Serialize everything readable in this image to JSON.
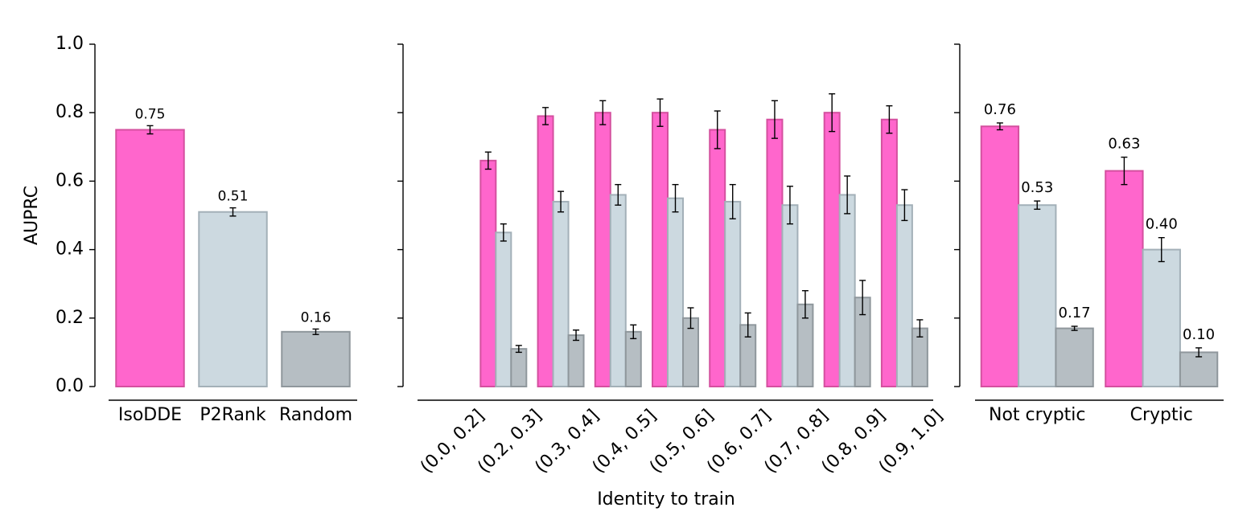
{
  "chart_data": [
    {
      "type": "bar",
      "ylabel": "AUPRC",
      "categories": [
        "IsoDDE",
        "P2Rank",
        "Random"
      ],
      "values": [
        0.75,
        0.51,
        0.16
      ],
      "errors": [
        0.012,
        0.012,
        0.008
      ],
      "value_labels": [
        "0.75",
        "0.51",
        "0.16"
      ],
      "colors": [
        "#ff66cc",
        "#ccd9e0",
        "#b6bec3"
      ],
      "ylim": [
        0,
        1.0
      ],
      "yticks": [
        {
          "value": 0,
          "label": "0.0"
        },
        {
          "value": 0.2,
          "label": "0.2"
        },
        {
          "value": 0.4,
          "label": "0.4"
        },
        {
          "value": 0.6,
          "label": "0.6"
        },
        {
          "value": 0.8,
          "label": "0.8"
        },
        {
          "value": 1.0,
          "label": "1.0"
        }
      ]
    },
    {
      "type": "grouped_bar",
      "xlabel": "Identity to train",
      "categories": [
        "(0.0, 0.2]",
        "(0.2, 0.3]",
        "(0.3, 0.4]",
        "(0.4, 0.5]",
        "(0.5, 0.6]",
        "(0.6, 0.7]",
        "(0.7, 0.8]",
        "(0.8, 0.9]",
        "(0.9, 1.0]"
      ],
      "series": [
        {
          "color": "#ff66cc",
          "values": [
            null,
            0.66,
            0.79,
            0.8,
            0.8,
            0.75,
            0.78,
            0.8,
            0.78
          ],
          "errors": [
            null,
            0.025,
            0.025,
            0.035,
            0.04,
            0.055,
            0.055,
            0.055,
            0.04
          ]
        },
        {
          "color": "#ccd9e0",
          "values": [
            null,
            0.45,
            0.54,
            0.56,
            0.55,
            0.54,
            0.53,
            0.56,
            0.53
          ],
          "errors": [
            null,
            0.025,
            0.03,
            0.03,
            0.04,
            0.05,
            0.055,
            0.055,
            0.045
          ]
        },
        {
          "color": "#b6bec3",
          "values": [
            null,
            0.11,
            0.15,
            0.16,
            0.2,
            0.18,
            0.24,
            0.26,
            0.17
          ],
          "errors": [
            null,
            0.01,
            0.015,
            0.02,
            0.03,
            0.035,
            0.04,
            0.05,
            0.025
          ]
        }
      ],
      "ylim": [
        0,
        1.0
      ],
      "yticks": [
        0,
        0.2,
        0.4,
        0.6,
        0.8,
        1.0
      ]
    },
    {
      "type": "grouped_bar",
      "categories": [
        "Not cryptic",
        "Cryptic"
      ],
      "series": [
        {
          "color": "#ff66cc",
          "values": [
            0.76,
            0.63
          ],
          "errors": [
            0.01,
            0.04
          ],
          "value_labels": [
            "0.76",
            "0.63"
          ]
        },
        {
          "color": "#ccd9e0",
          "values": [
            0.53,
            0.4
          ],
          "errors": [
            0.012,
            0.035
          ],
          "value_labels": [
            "0.53",
            "0.40"
          ]
        },
        {
          "color": "#b6bec3",
          "values": [
            0.17,
            0.1
          ],
          "errors": [
            0.006,
            0.013
          ],
          "value_labels": [
            "0.17",
            "0.10"
          ]
        }
      ],
      "ylim": [
        0,
        1.0
      ],
      "yticks": [
        0,
        0.2,
        0.4,
        0.6,
        0.8,
        1.0
      ]
    }
  ]
}
